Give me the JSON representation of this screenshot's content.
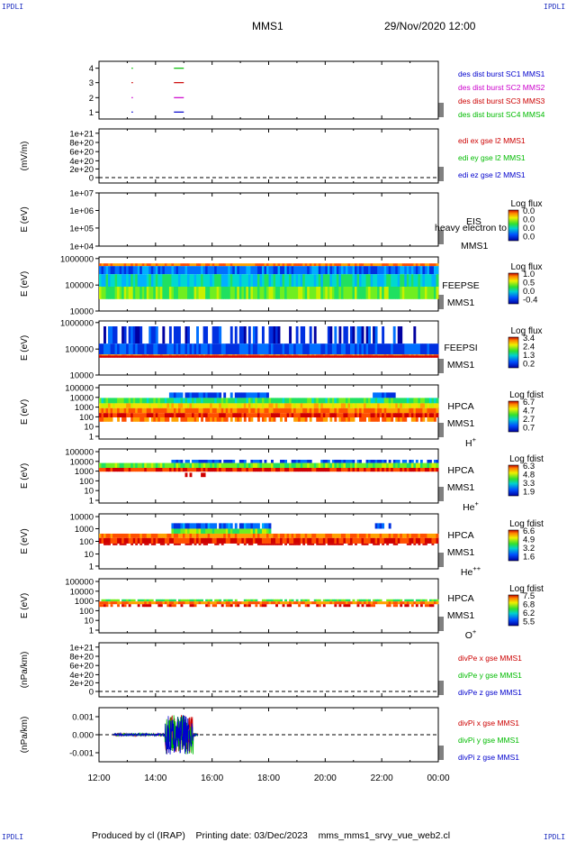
{
  "corner_label": "IPDLI",
  "header": {
    "title": "MMS1",
    "date": "29/Nov/2020 12:00"
  },
  "footer": {
    "produced": "Produced by cl (IRAP)",
    "printed": "Printing date: 03/Dec/2023",
    "file": "mms_mms1_srvy_vue_web2.cl"
  },
  "colors": {
    "c1": "#0000cc",
    "c2": "#cc00cc",
    "c3": "#cc0000",
    "c4": "#00bb00"
  },
  "x_ticks": [
    "12:00",
    "14:00",
    "16:00",
    "18:00",
    "20:00",
    "22:00",
    "00:00"
  ],
  "chart_data": [
    {
      "type": "line",
      "panel": "burst",
      "y_ticks": [
        "4",
        "3",
        "2",
        "1"
      ],
      "legend": [
        "des dist burst SC1 MMS1",
        "des dist burst SC2 MMS2",
        "des dist burst SC3 MMS3",
        "des dist burst SC4 MMS4"
      ],
      "series": [
        {
          "name": "des dist burst SC1 MMS1",
          "level": 1,
          "intervals": [
            [
              13.15,
              13.2
            ],
            [
              14.65,
              15.0
            ]
          ]
        },
        {
          "name": "des dist burst SC2 MMS2",
          "level": 2,
          "intervals": [
            [
              13.15,
              13.2
            ],
            [
              14.65,
              15.0
            ]
          ]
        },
        {
          "name": "des dist burst SC3 MMS3",
          "level": 3,
          "intervals": [
            [
              13.15,
              13.2
            ],
            [
              14.65,
              15.0
            ]
          ]
        },
        {
          "name": "des dist burst SC4 MMS4",
          "level": 4,
          "intervals": [
            [
              13.15,
              13.2
            ],
            [
              14.65,
              15.0
            ]
          ]
        }
      ],
      "xlim": [
        "12:00",
        "00:00"
      ]
    },
    {
      "type": "line",
      "panel": "edi",
      "ylabel": "(mV/m)",
      "y_ticks": [
        "1e+21",
        "8e+20",
        "6e+20",
        "4e+20",
        "2e+20",
        "0"
      ],
      "legend": [
        "edi ex gse l2 MMS1",
        "edi ey gse l2 MMS1",
        "edi ez gse l2 MMS1"
      ]
    },
    {
      "type": "heatmap",
      "panel": "eis",
      "ylabel": "E (eV)",
      "y_ticks": [
        "1e+07",
        "1e+06",
        "1e+05",
        "1e+04"
      ],
      "labels": [
        "EIS",
        "MMS1"
      ],
      "overlay": "heavy electron to",
      "cbar_title": "Log flux",
      "cbar_ticks": [
        "0.0",
        "0.0",
        "0.0",
        "0.0"
      ]
    },
    {
      "type": "heatmap",
      "panel": "feepse",
      "ylabel": "E (eV)",
      "y_ticks": [
        "1000000",
        "100000",
        "10000"
      ],
      "labels": [
        "FEEPSE",
        "MMS1"
      ],
      "cbar_title": "Log flux",
      "cbar_ticks": [
        "1.0",
        "0.5",
        "0.0",
        "-0.4"
      ]
    },
    {
      "type": "heatmap",
      "panel": "feepsi",
      "ylabel": "E (eV)",
      "y_ticks": [
        "1000000",
        "100000",
        "10000"
      ],
      "labels": [
        "FEEPSI",
        "MMS1"
      ],
      "cbar_title": "Log flux",
      "cbar_ticks": [
        "3.4",
        "2.4",
        "1.3",
        "0.2"
      ]
    },
    {
      "type": "heatmap",
      "panel": "hpca_h",
      "ylabel": "E (eV)",
      "y_ticks": [
        "100000",
        "10000",
        "1000",
        "100",
        "10",
        "1"
      ],
      "labels": [
        "HPCA",
        "MMS1"
      ],
      "species": "H",
      "charge": "+",
      "cbar_title": "Log fdist",
      "cbar_ticks": [
        "6.7",
        "4.7",
        "2.7",
        "0.7"
      ]
    },
    {
      "type": "heatmap",
      "panel": "hpca_he",
      "ylabel": "E (eV)",
      "y_ticks": [
        "100000",
        "10000",
        "1000",
        "100",
        "10",
        "1"
      ],
      "labels": [
        "HPCA",
        "MMS1"
      ],
      "species": "He",
      "charge": "+",
      "cbar_title": "Log fdist",
      "cbar_ticks": [
        "6.3",
        "4.8",
        "3.3",
        "1.9"
      ]
    },
    {
      "type": "heatmap",
      "panel": "hpca_hepp",
      "ylabel": "E (eV)",
      "y_ticks": [
        "10000",
        "1000",
        "100",
        "10",
        "1"
      ],
      "labels": [
        "HPCA",
        "MMS1"
      ],
      "species": "He",
      "charge": "++",
      "cbar_title": "Log fdist",
      "cbar_ticks": [
        "6.6",
        "4.9",
        "3.2",
        "1.6"
      ]
    },
    {
      "type": "heatmap",
      "panel": "hpca_o",
      "ylabel": "E (eV)",
      "y_ticks": [
        "100000",
        "10000",
        "1000",
        "100",
        "10",
        "1"
      ],
      "labels": [
        "HPCA",
        "MMS1"
      ],
      "species": "O",
      "charge": "+",
      "cbar_title": "Log fdist",
      "cbar_ticks": [
        "7.5",
        "6.8",
        "6.2",
        "5.5"
      ]
    },
    {
      "type": "line",
      "panel": "divpe",
      "ylabel": "(nPa/km)",
      "y_ticks": [
        "1e+21",
        "8e+20",
        "6e+20",
        "4e+20",
        "2e+20",
        "0"
      ],
      "legend": [
        "divPe x gse MMS1",
        "divPe y gse MMS1",
        "divPe z gse MMS1"
      ]
    },
    {
      "type": "line",
      "panel": "divpi",
      "ylabel": "(nPa/km)",
      "y_ticks": [
        "0.001",
        "0.000",
        "-0.001"
      ],
      "ylim": [
        -0.0015,
        0.0015
      ],
      "legend": [
        "divPi x gse MMS1",
        "divPi y gse MMS1",
        "divPi z gse MMS1"
      ],
      "data_interval": [
        "12:30",
        "15:30"
      ],
      "burst_interval": [
        "14:20",
        "15:20"
      ]
    }
  ]
}
